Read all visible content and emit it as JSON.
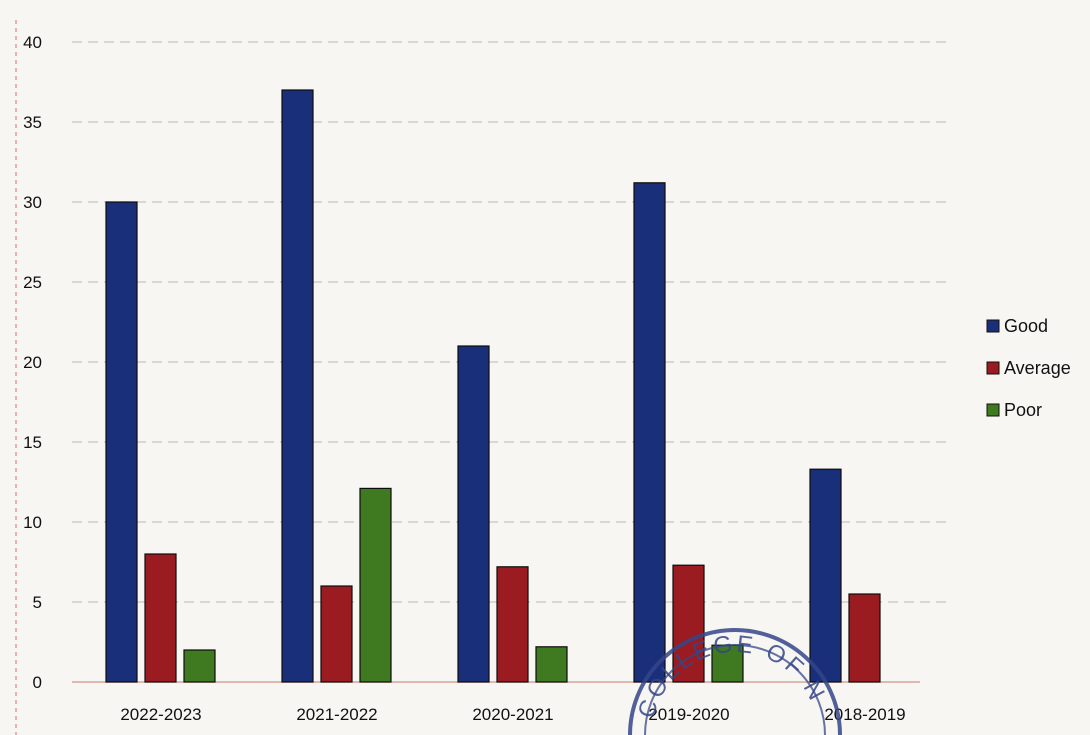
{
  "chart_data": {
    "type": "bar",
    "categories": [
      "2022-2023",
      "2021-2022",
      "2020-2021",
      "2019-2020",
      "2018-2019"
    ],
    "series": [
      {
        "name": "Good",
        "values": [
          30,
          37,
          21,
          31.2,
          13.3
        ]
      },
      {
        "name": "Average",
        "values": [
          8,
          6,
          7.2,
          7.3,
          5.5
        ]
      },
      {
        "name": "Poor",
        "values": [
          2,
          12.1,
          2.2,
          2.3,
          0
        ]
      }
    ],
    "ylim": [
      0,
      40
    ],
    "yticks": [
      0,
      5,
      10,
      15,
      20,
      25,
      30,
      35,
      40
    ],
    "colors": [
      "#1a2f7a",
      "#9b1c20",
      "#3f7a20"
    ],
    "title": "",
    "xlabel": "",
    "ylabel": "",
    "grid": true,
    "legend_position": "right"
  },
  "stamp": {
    "text": "COLLEGE OF N"
  }
}
